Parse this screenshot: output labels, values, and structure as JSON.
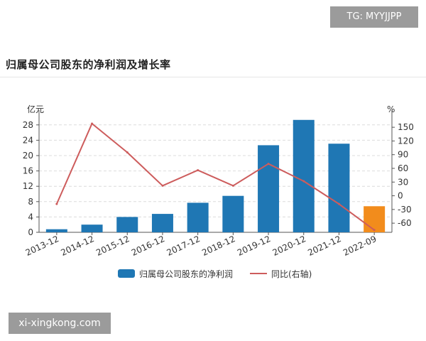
{
  "watermarks": {
    "top_right": "TG: MYYJJPP",
    "bottom_left": "xi-xingkong.com"
  },
  "title": "归属母公司股东的净利润及增长率",
  "chart_data": {
    "type": "bar",
    "categories": [
      "2013-12",
      "2014-12",
      "2015-12",
      "2016-12",
      "2017-12",
      "2018-12",
      "2019-12",
      "2020-12",
      "2021-12",
      "2022-09"
    ],
    "series": [
      {
        "name": "归属母公司股东的净利润",
        "type": "bar",
        "axis": "left",
        "values": [
          0.8,
          2.0,
          4.0,
          4.8,
          7.7,
          9.5,
          22.7,
          29.3,
          23.1,
          6.8
        ],
        "color": "#1f77b4",
        "highlight_color": "#f28c1c",
        "highlight_index": 9
      },
      {
        "name": "同比(右轴)",
        "type": "line",
        "axis": "right",
        "values": [
          -18,
          158,
          95,
          22,
          56,
          22,
          70,
          32,
          -18,
          -75
        ],
        "color": "#cd5c5c"
      }
    ],
    "y_left": {
      "unit": "亿元",
      "ticks": [
        0,
        4,
        8,
        12,
        16,
        20,
        24,
        28
      ],
      "ylim": [
        0,
        30
      ]
    },
    "y_right": {
      "unit": "%",
      "ticks": [
        -60,
        -30,
        0,
        30,
        60,
        90,
        120,
        150
      ],
      "ylim": [
        -80,
        172
      ]
    },
    "grid": "horizontal-dashed",
    "legend_position": "bottom"
  }
}
